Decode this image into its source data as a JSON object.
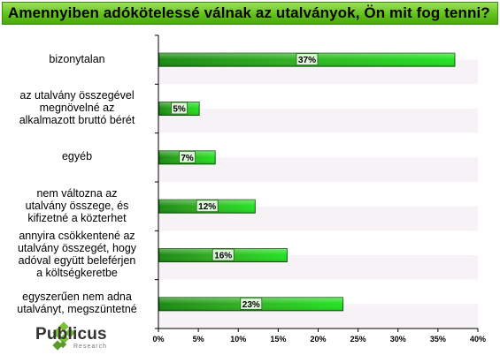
{
  "title": "Amennyiben adókötelessé válnak az utalványok, Ön mit fog tenni?",
  "brand": {
    "name": "Publicus",
    "subtitle": "Research",
    "icon": "publicus-logo-icon"
  },
  "colors": {
    "bar_dark": "#1a8a12",
    "bar_light": "#22e322",
    "title_green": "#62c21d",
    "band": "#f6f2f6"
  },
  "chart_data": {
    "type": "bar",
    "orientation": "horizontal",
    "title": "Amennyiben adókötelessé válnak az utalványok, Ön mit fog tenni?",
    "categories": [
      [
        "bizonytalan"
      ],
      [
        "az utalvány összegével",
        "megnövelné az",
        "alkalmazott bruttó bérét"
      ],
      [
        "egyéb"
      ],
      [
        "nem változna az",
        "utalvány összege, és",
        "kifizetné a közterhet"
      ],
      [
        "annyira csökkentené az",
        "utalvány összegét, hogy",
        "adóval együtt beleférjen",
        "a költségkeretbe"
      ],
      [
        "egyszerűen nem adna",
        "utalványt, megszüntetné"
      ]
    ],
    "values": [
      37,
      5,
      7,
      12,
      16,
      23
    ],
    "data_labels": [
      "37%",
      "5%",
      "7%",
      "12%",
      "16%",
      "23%"
    ],
    "xlim": [
      0,
      40
    ],
    "xticks": [
      "0%",
      "5%",
      "10%",
      "15%",
      "20%",
      "25%",
      "30%",
      "35%",
      "40%"
    ],
    "xlabel": "",
    "ylabel": "",
    "grid": false,
    "legend": "none"
  }
}
